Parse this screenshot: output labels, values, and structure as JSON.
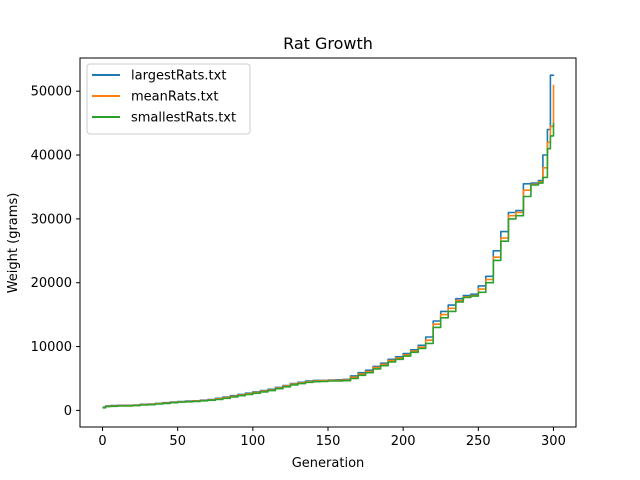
{
  "chart_data": {
    "type": "line",
    "title": "Rat Growth",
    "xlabel": "Generation",
    "ylabel": "Weight (grams)",
    "xlim": [
      -15,
      315
    ],
    "ylim": [
      -2600,
      55200
    ],
    "xticks": [
      0,
      50,
      100,
      150,
      200,
      250,
      300
    ],
    "yticks": [
      0,
      10000,
      20000,
      30000,
      40000,
      50000
    ],
    "grid": false,
    "legend_position": "top-left",
    "series": [
      {
        "name": "largestRats.txt",
        "color": "#1f77b4",
        "x": [
          0,
          2,
          5,
          10,
          20,
          25,
          30,
          35,
          40,
          45,
          50,
          55,
          60,
          65,
          70,
          75,
          80,
          85,
          90,
          95,
          100,
          105,
          110,
          115,
          120,
          125,
          130,
          135,
          140,
          145,
          150,
          155,
          160,
          165,
          170,
          175,
          180,
          185,
          190,
          195,
          200,
          205,
          210,
          215,
          220,
          225,
          230,
          235,
          240,
          245,
          250,
          255,
          260,
          265,
          270,
          275,
          280,
          285,
          290,
          293,
          296,
          298,
          300
        ],
        "y": [
          500,
          700,
          750,
          800,
          850,
          950,
          1000,
          1100,
          1200,
          1300,
          1400,
          1450,
          1500,
          1600,
          1700,
          1900,
          2100,
          2300,
          2500,
          2700,
          2900,
          3100,
          3300,
          3600,
          3900,
          4200,
          4400,
          4600,
          4700,
          4700,
          4750,
          4800,
          4850,
          5400,
          5900,
          6300,
          6900,
          7400,
          8000,
          8400,
          8900,
          9500,
          10200,
          11500,
          14000,
          15500,
          16500,
          17500,
          18000,
          18200,
          19500,
          21000,
          25000,
          28000,
          31000,
          31300,
          35500,
          35600,
          36000,
          40000,
          44000,
          52500,
          52600
        ]
      },
      {
        "name": "meanRats.txt",
        "color": "#ff7f0e",
        "x": [
          0,
          2,
          5,
          10,
          20,
          25,
          30,
          35,
          40,
          45,
          50,
          55,
          60,
          65,
          70,
          75,
          80,
          85,
          90,
          95,
          100,
          105,
          110,
          115,
          120,
          125,
          130,
          135,
          140,
          145,
          150,
          155,
          160,
          165,
          170,
          175,
          180,
          185,
          190,
          195,
          200,
          205,
          210,
          215,
          220,
          225,
          230,
          235,
          240,
          245,
          250,
          255,
          260,
          265,
          270,
          275,
          280,
          285,
          290,
          293,
          296,
          298,
          300
        ],
        "y": [
          450,
          650,
          700,
          750,
          800,
          900,
          950,
          1050,
          1150,
          1250,
          1350,
          1400,
          1450,
          1550,
          1650,
          1800,
          2000,
          2200,
          2400,
          2600,
          2800,
          3000,
          3200,
          3500,
          3800,
          4100,
          4300,
          4500,
          4600,
          4650,
          4700,
          4700,
          4750,
          5200,
          5700,
          6100,
          6700,
          7200,
          7800,
          8200,
          8700,
          9300,
          9900,
          11000,
          13500,
          15000,
          16000,
          17200,
          17800,
          18000,
          19000,
          20500,
          24000,
          27000,
          30500,
          31000,
          34500,
          35400,
          35800,
          38000,
          42000,
          44500,
          51000
        ]
      },
      {
        "name": "smallestRats.txt",
        "color": "#2ca02c",
        "x": [
          0,
          2,
          5,
          10,
          20,
          25,
          30,
          35,
          40,
          45,
          50,
          55,
          60,
          65,
          70,
          75,
          80,
          85,
          90,
          95,
          100,
          105,
          110,
          115,
          120,
          125,
          130,
          135,
          140,
          145,
          150,
          155,
          160,
          165,
          170,
          175,
          180,
          185,
          190,
          195,
          200,
          205,
          210,
          215,
          220,
          225,
          230,
          235,
          240,
          245,
          250,
          255,
          260,
          265,
          270,
          275,
          280,
          285,
          290,
          293,
          296,
          298,
          300
        ],
        "y": [
          400,
          600,
          650,
          700,
          750,
          850,
          900,
          1000,
          1100,
          1200,
          1300,
          1350,
          1400,
          1500,
          1600,
          1700,
          1900,
          2100,
          2300,
          2500,
          2700,
          2900,
          3100,
          3400,
          3700,
          4000,
          4200,
          4400,
          4500,
          4550,
          4600,
          4600,
          4650,
          5000,
          5500,
          5900,
          6500,
          7000,
          7600,
          8000,
          8500,
          9100,
          9700,
          10500,
          13000,
          14500,
          15500,
          17000,
          17700,
          17900,
          18500,
          20000,
          23500,
          26500,
          30000,
          30500,
          33500,
          35300,
          35600,
          36500,
          41000,
          43000,
          45000
        ]
      }
    ]
  }
}
